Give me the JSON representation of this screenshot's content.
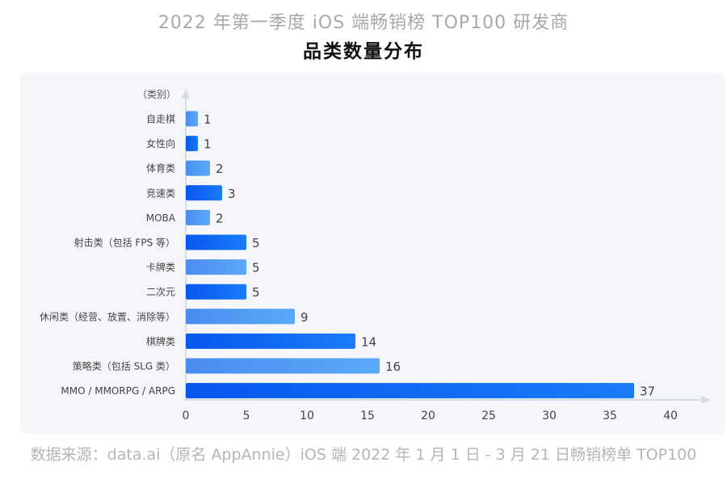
{
  "header": {
    "subtitle": "2022 年第一季度 iOS 端畅销榜 TOP100 研发商",
    "title": "品类数量分布"
  },
  "footer": {
    "source": "数据来源：data.ai（原名 AppAnnie）iOS 端 2022 年 1 月 1 日 - 3 月 21 日畅销榜单 TOP100"
  },
  "chart_data": {
    "type": "bar",
    "orientation": "horizontal",
    "ylabel": "（类别）",
    "categories": [
      "自走棋",
      "女性向",
      "体育类",
      "竞速类",
      "MOBA",
      "射击类（包括 FPS 等）",
      "卡牌类",
      "二次元",
      "休闲类（经营、放置、消除等）",
      "棋牌类",
      "策略类（包括 SLG 类）",
      "MMO / MMORPG / ARPG"
    ],
    "values": [
      1,
      1,
      2,
      3,
      2,
      5,
      5,
      5,
      9,
      14,
      16,
      37
    ],
    "xlim": [
      0,
      40
    ],
    "xticks": [
      0,
      5,
      10,
      15,
      20,
      25,
      30,
      35,
      40
    ],
    "grid": false,
    "colors": {
      "light": [
        "#4a8cf0",
        "#5aaaf8"
      ],
      "dark": [
        "#0757ee",
        "#1a7cf8"
      ]
    }
  }
}
